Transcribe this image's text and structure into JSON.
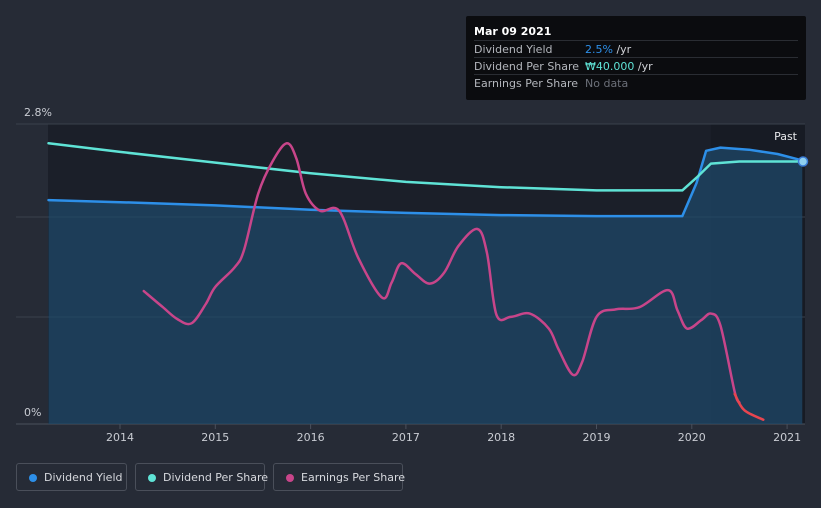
{
  "tooltip": {
    "date": "Mar 09 2021",
    "rows": [
      {
        "label": "Dividend Yield",
        "value": "2.5%",
        "unit": " /yr"
      },
      {
        "label": "Dividend Per Share",
        "value": "₩40.000",
        "unit": " /yr"
      },
      {
        "label": "Earnings Per Share",
        "value": "No data",
        "unit": ""
      }
    ]
  },
  "past_label": "Past",
  "legend": [
    {
      "label": "Dividend Yield",
      "color": "#2d8fe8"
    },
    {
      "label": "Dividend Per Share",
      "color": "#5fe3d6"
    },
    {
      "label": "Earnings Per Share",
      "color": "#c8458a"
    }
  ],
  "chart_data": {
    "type": "line",
    "y_ticks": [
      "2.8%",
      "0%"
    ],
    "x_ticks": [
      "2014",
      "2015",
      "2016",
      "2017",
      "2018",
      "2019",
      "2020",
      "2021"
    ],
    "ylim": [
      0,
      2.8
    ],
    "xlim": [
      2013.0,
      2021.18
    ],
    "series": [
      {
        "name": "Dividend Yield",
        "color": "#2d8fe8",
        "filled": true,
        "points": [
          [
            2013.25,
            2.09
          ],
          [
            2014.0,
            2.07
          ],
          [
            2015.0,
            2.04
          ],
          [
            2016.0,
            2.0
          ],
          [
            2017.0,
            1.97
          ],
          [
            2018.0,
            1.95
          ],
          [
            2019.0,
            1.94
          ],
          [
            2019.9,
            1.94
          ],
          [
            2020.05,
            2.25
          ],
          [
            2020.15,
            2.55
          ],
          [
            2020.3,
            2.58
          ],
          [
            2020.6,
            2.56
          ],
          [
            2020.9,
            2.52
          ],
          [
            2021.16,
            2.46
          ]
        ]
      },
      {
        "name": "Dividend Per Share",
        "color": "#5fe3d6",
        "filled": false,
        "points": [
          [
            2013.25,
            2.62
          ],
          [
            2014.0,
            2.54
          ],
          [
            2015.0,
            2.44
          ],
          [
            2016.0,
            2.34
          ],
          [
            2017.0,
            2.26
          ],
          [
            2018.0,
            2.21
          ],
          [
            2019.0,
            2.18
          ],
          [
            2019.9,
            2.18
          ],
          [
            2020.05,
            2.3
          ],
          [
            2020.2,
            2.43
          ],
          [
            2020.5,
            2.45
          ],
          [
            2021.16,
            2.45
          ]
        ]
      },
      {
        "name": "Earnings Per Share",
        "color": "#c8458a",
        "filled": false,
        "points": [
          [
            2014.25,
            1.24
          ],
          [
            2014.45,
            1.09
          ],
          [
            2014.6,
            0.98
          ],
          [
            2014.75,
            0.94
          ],
          [
            2014.9,
            1.12
          ],
          [
            2015.0,
            1.28
          ],
          [
            2015.2,
            1.46
          ],
          [
            2015.3,
            1.62
          ],
          [
            2015.45,
            2.15
          ],
          [
            2015.6,
            2.45
          ],
          [
            2015.75,
            2.62
          ],
          [
            2015.85,
            2.48
          ],
          [
            2015.95,
            2.15
          ],
          [
            2016.1,
            1.99
          ],
          [
            2016.3,
            1.99
          ],
          [
            2016.5,
            1.55
          ],
          [
            2016.75,
            1.18
          ],
          [
            2016.85,
            1.32
          ],
          [
            2016.95,
            1.5
          ],
          [
            2017.1,
            1.4
          ],
          [
            2017.25,
            1.31
          ],
          [
            2017.4,
            1.41
          ],
          [
            2017.55,
            1.66
          ],
          [
            2017.75,
            1.82
          ],
          [
            2017.85,
            1.6
          ],
          [
            2017.95,
            1.02
          ],
          [
            2018.1,
            1.0
          ],
          [
            2018.3,
            1.03
          ],
          [
            2018.5,
            0.89
          ],
          [
            2018.6,
            0.7
          ],
          [
            2018.75,
            0.46
          ],
          [
            2018.85,
            0.58
          ],
          [
            2019.0,
            1.0
          ],
          [
            2019.2,
            1.07
          ],
          [
            2019.45,
            1.09
          ],
          [
            2019.75,
            1.25
          ],
          [
            2019.85,
            1.06
          ],
          [
            2019.95,
            0.89
          ],
          [
            2020.1,
            0.97
          ],
          [
            2020.2,
            1.03
          ],
          [
            2020.3,
            0.92
          ],
          [
            2020.45,
            0.3
          ],
          [
            2020.5,
            0.2
          ]
        ]
      },
      {
        "name": "Earnings Per Share (latest)",
        "color": "#e8454f",
        "filled": false,
        "points": [
          [
            2020.45,
            0.28
          ],
          [
            2020.55,
            0.13
          ],
          [
            2020.75,
            0.04
          ]
        ]
      }
    ]
  }
}
